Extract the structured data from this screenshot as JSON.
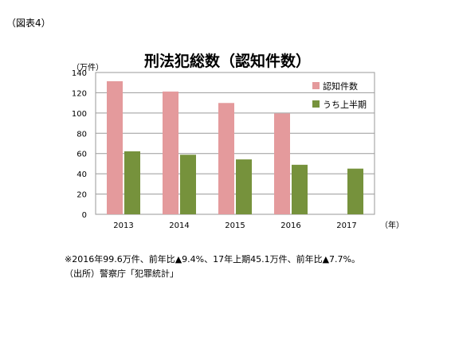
{
  "figure_label": "（図表4）",
  "notes": [
    "※2016年99.6万件、前年比▲9.4%、17年上期45.1万件、前年比▲7.7%。",
    "（出所）警察庁「犯罪統計」"
  ],
  "colors": {
    "series1": "#e49a9c",
    "series2": "#76923c",
    "grid": "#9a9a9a"
  },
  "chart_data": {
    "type": "bar",
    "title": "刑法犯総数（認知件数）",
    "ylabel": "（万件）",
    "xlabel": "（年）",
    "categories": [
      "2013",
      "2014",
      "2015",
      "2016",
      "2017"
    ],
    "series": [
      {
        "name": "認知件数",
        "values": [
          131.4,
          121.2,
          109.9,
          99.6,
          null
        ]
      },
      {
        "name": "うち上半期",
        "values": [
          62.2,
          58.8,
          54.2,
          48.9,
          45.1
        ]
      }
    ],
    "ylim": [
      0,
      140
    ],
    "yticks": [
      0,
      20,
      40,
      60,
      80,
      100,
      120,
      140
    ],
    "grid": true,
    "legend": "top-right"
  }
}
